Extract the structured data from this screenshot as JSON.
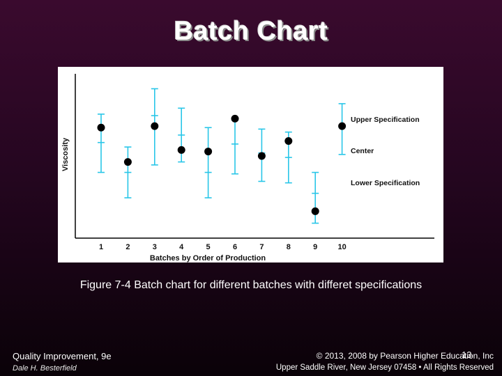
{
  "slide": {
    "title": "Batch Chart",
    "caption": "Figure 7-4 Batch chart for different batches with differet specifications",
    "footer_left_title": "Quality Improvement, 9e",
    "footer_left_author": "Dale H. Besterfield",
    "footer_right_line1": "© 2013, 2008 by Pearson Higher Education, Inc",
    "footer_right_line2": "Upper Saddle River, New Jersey 07458 • All Rights Reserved",
    "page_number": "13"
  },
  "chart_data": {
    "type": "scatter",
    "xlabel": "Batches by Order of Production",
    "ylabel": "Viscosity",
    "categories": [
      "1",
      "2",
      "3",
      "4",
      "5",
      "6",
      "7",
      "8",
      "9",
      "10"
    ],
    "batches": [
      {
        "x": 1,
        "value": 7.4,
        "upper": 8.3,
        "center": 6.4,
        "lower": 4.4
      },
      {
        "x": 2,
        "value": 5.1,
        "upper": 6.1,
        "center": 4.4,
        "lower": 2.7
      },
      {
        "x": 3,
        "value": 7.5,
        "upper": 10.0,
        "center": 8.2,
        "lower": 4.9
      },
      {
        "x": 4,
        "value": 5.9,
        "upper": 8.7,
        "center": 6.9,
        "lower": 5.1
      },
      {
        "x": 5,
        "value": 5.8,
        "upper": 7.4,
        "center": 4.4,
        "lower": 2.7
      },
      {
        "x": 6,
        "value": 8.0,
        "upper": 7.9,
        "center": 6.3,
        "lower": 4.3
      },
      {
        "x": 7,
        "value": 5.5,
        "upper": 7.3,
        "center": 5.7,
        "lower": 3.8
      },
      {
        "x": 8,
        "value": 6.5,
        "upper": 7.1,
        "center": 5.4,
        "lower": 3.7
      },
      {
        "x": 9,
        "value": 1.8,
        "upper": 4.4,
        "center": 3.0,
        "lower": 1.0
      },
      {
        "x": 10,
        "value": 7.5,
        "upper": 9.0,
        "center": 7.4,
        "lower": 5.6
      }
    ],
    "legend_labels": {
      "upper": "Upper Specification",
      "center": "Center",
      "lower": "Lower Specification"
    },
    "legend_placement": "right",
    "colors": {
      "spec": "#29c6e8",
      "point": "#000000",
      "axis": "#000000"
    },
    "ylim": [
      0,
      11
    ],
    "grid": false
  }
}
